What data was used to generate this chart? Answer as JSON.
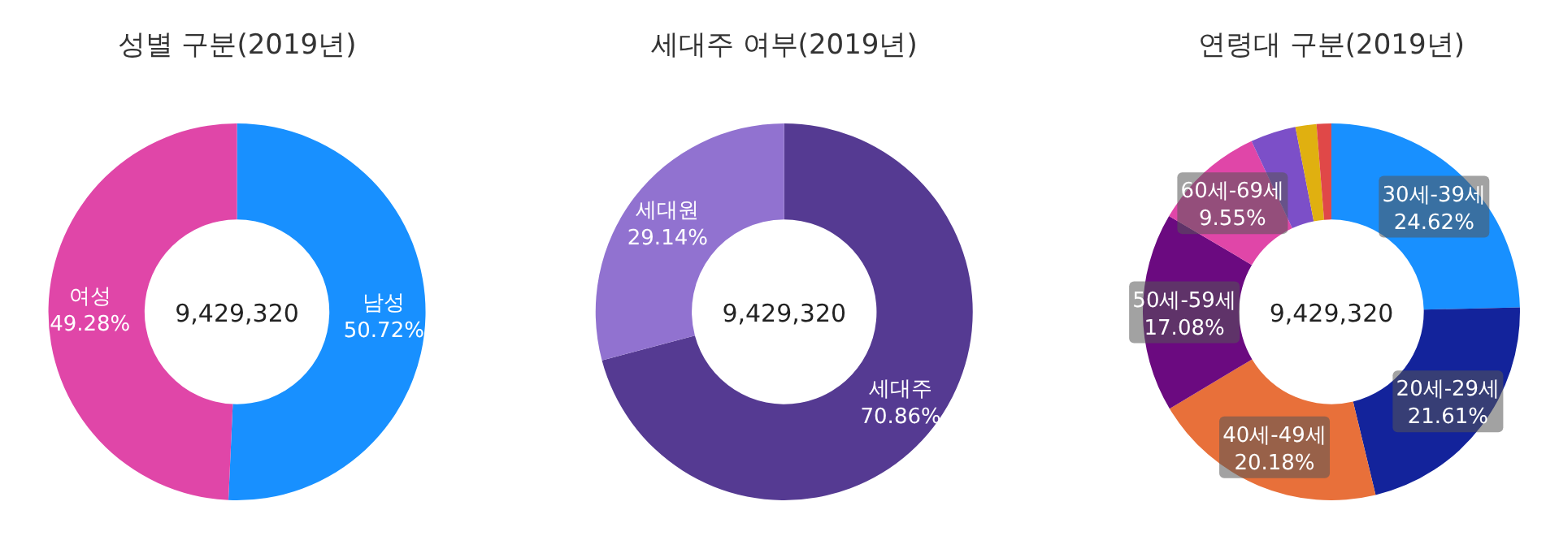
{
  "chart_data": [
    {
      "type": "donut",
      "title": "성별 구분(2019년)",
      "categories": [
        "남성",
        "여성"
      ],
      "values": [
        50.72,
        49.28
      ],
      "colors": [
        "#1890ff",
        "#e046a8"
      ],
      "value_labels": [
        "50.72%",
        "49.28%"
      ],
      "annotations": [
        "9,429,320"
      ]
    },
    {
      "type": "donut",
      "title": "세대주 여부(2019년)",
      "categories": [
        "세대주",
        "세대원"
      ],
      "values": [
        70.86,
        29.14
      ],
      "colors": [
        "#553a92",
        "#9172d0"
      ],
      "value_labels": [
        "70.86%",
        "29.14%"
      ],
      "annotations": [
        "9,429,320"
      ]
    },
    {
      "type": "donut",
      "title": "연령대 구분(2019년)",
      "categories": [
        "30세-39세",
        "20세-29세",
        "40세-49세",
        "50세-59세",
        "60세-69세",
        null,
        null,
        null
      ],
      "values": [
        24.62,
        21.61,
        20.18,
        17.08,
        9.55,
        3.9,
        1.8,
        1.26
      ],
      "colors": [
        "#1890ff",
        "#13239b",
        "#e8703a",
        "#6b0a80",
        "#e046a8",
        "#7c4fc8",
        "#e0b010",
        "#e04848"
      ],
      "value_labels": [
        "24.62%",
        "21.61%",
        "20.18%",
        "17.08%",
        "9.55%",
        null,
        null,
        null
      ],
      "annotations": [
        "9,429,320"
      ]
    }
  ]
}
